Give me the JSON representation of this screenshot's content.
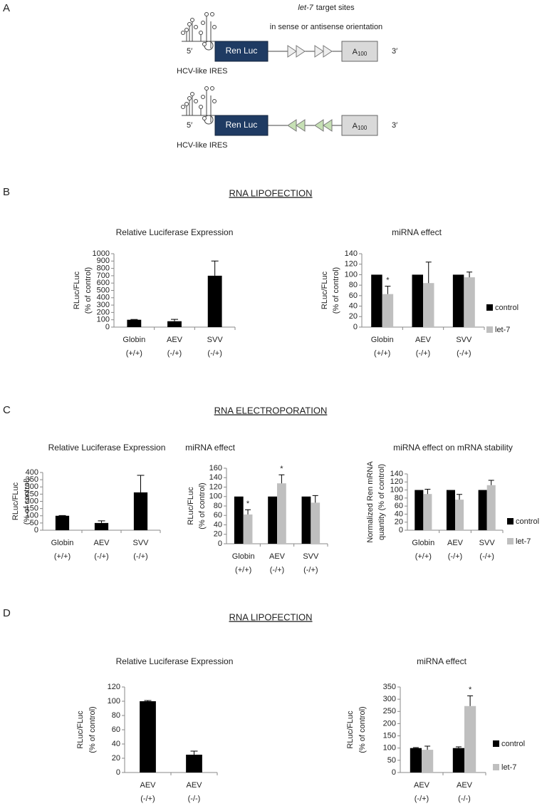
{
  "panels": [
    {
      "label": "A"
    },
    {
      "label": "B",
      "title": "RNA LIPOFECTION"
    },
    {
      "label": "C",
      "title": "RNA ELECTROPORATION"
    },
    {
      "label": "D",
      "title": "RNA LIPOFECTION"
    }
  ],
  "diagram": {
    "note": {
      "italic": "let-7",
      "rest": "target sites",
      "line2": "in sense or antisense orientation"
    },
    "constructs": [
      {
        "five": "5′",
        "reporter": "Ren Luc",
        "tail": "A",
        "tail_sub": "100",
        "three": "3′",
        "ires": "HCV-like IRES"
      },
      {
        "five": "5′",
        "reporter": "Ren Luc",
        "tail": "A",
        "tail_sub": "100",
        "three": "3′",
        "ires": "HCV-like IRES"
      }
    ]
  },
  "chart_data": [
    {
      "type": "bar",
      "title": "Relative Luciferase Expression",
      "y_label": [
        "RLuc/FLuc",
        "(% of control)"
      ],
      "categories": [
        [
          "Globin",
          "(+/+)"
        ],
        [
          "AEV",
          "(-/+)"
        ],
        [
          "SVV",
          "(-/+)"
        ]
      ],
      "values": [
        100,
        80,
        700
      ],
      "errors": [
        4,
        25,
        200
      ],
      "color": "#000000",
      "ylim": [
        0,
        1000
      ],
      "yticks": [
        0,
        100,
        200,
        300,
        400,
        500,
        600,
        700,
        800,
        900,
        1000
      ]
    },
    {
      "type": "grouped_bar",
      "title": "miRNA effect",
      "y_label": [
        "RLuc/FLuc",
        "(% of control)"
      ],
      "categories": [
        [
          "Globin",
          "(+/+)"
        ],
        [
          "AEV",
          "(-/+)"
        ],
        [
          "SVV",
          "(-/+)"
        ]
      ],
      "series": [
        {
          "name": "control",
          "color": "#000000",
          "values": [
            100,
            100,
            100
          ]
        },
        {
          "name": "let-7",
          "color": "#bfbfbf",
          "values": [
            63,
            84,
            95
          ],
          "errors": [
            15,
            40,
            10
          ],
          "annotations": [
            "*",
            null,
            null
          ]
        }
      ],
      "ylim": [
        0,
        140
      ],
      "yticks": [
        0,
        20,
        40,
        60,
        80,
        100,
        120,
        140
      ],
      "legend": "right"
    },
    {
      "type": "bar",
      "title": "Relative Luciferase Expression",
      "y_label": [
        "RLuc/FLuc",
        "(% of control)"
      ],
      "categories": [
        [
          "Globin",
          "(+/+)"
        ],
        [
          "AEV",
          "(-/+)"
        ],
        [
          "SVV",
          "(-/+)"
        ]
      ],
      "values": [
        100,
        50,
        262
      ],
      "errors": [
        2,
        15,
        118
      ],
      "color": "#000000",
      "ylim": [
        0,
        400
      ],
      "yticks": [
        0,
        50,
        100,
        150,
        200,
        250,
        300,
        350,
        400
      ]
    },
    {
      "type": "grouped_bar",
      "title": "miRNA effect",
      "y_label": [
        "RLuc/FLuc",
        "(% of control)"
      ],
      "categories": [
        [
          "Globin",
          "(+/+)"
        ],
        [
          "AEV",
          "(-/+)"
        ],
        [
          "SVV",
          "(-/+)"
        ]
      ],
      "series": [
        {
          "name": "control",
          "color": "#000000",
          "values": [
            100,
            100,
            100
          ]
        },
        {
          "name": "let-7",
          "color": "#bfbfbf",
          "values": [
            62,
            128,
            87
          ],
          "errors": [
            10,
            18,
            15
          ],
          "annotations": [
            "*",
            "*",
            null
          ]
        }
      ],
      "ylim": [
        0,
        160
      ],
      "yticks": [
        0,
        20,
        40,
        60,
        80,
        100,
        120,
        140,
        160
      ]
    },
    {
      "type": "grouped_bar",
      "title": "miRNA effect on mRNA stability",
      "y_label": [
        "Normalized Ren mRNA",
        "quantity (% of control)"
      ],
      "categories": [
        [
          "Globin",
          "(+/+)"
        ],
        [
          "AEV",
          "(-/+)"
        ],
        [
          "SVV",
          "(-/+)"
        ]
      ],
      "series": [
        {
          "name": "control",
          "color": "#000000",
          "values": [
            100,
            100,
            100
          ]
        },
        {
          "name": "let-7",
          "color": "#bfbfbf",
          "values": [
            90,
            76,
            112
          ],
          "errors": [
            12,
            13,
            12
          ]
        }
      ],
      "ylim": [
        0,
        140
      ],
      "yticks": [
        0,
        20,
        40,
        60,
        80,
        100,
        120,
        140
      ],
      "legend": "right"
    },
    {
      "type": "bar",
      "title": "Relative Luciferase Expression",
      "y_label": [
        "RLuc/FLuc",
        "(% of control)"
      ],
      "categories": [
        [
          "AEV",
          "(-/+)"
        ],
        [
          "AEV",
          "(-/-)"
        ]
      ],
      "values": [
        100,
        25
      ],
      "errors": [
        1,
        5
      ],
      "color": "#000000",
      "ylim": [
        0,
        120
      ],
      "yticks": [
        0,
        20,
        40,
        60,
        80,
        100,
        120
      ]
    },
    {
      "type": "grouped_bar",
      "title": "miRNA effect",
      "y_label": [
        "RLuc/FLuc",
        "(% of control)"
      ],
      "categories": [
        [
          "AEV",
          "(-/+)"
        ],
        [
          "AEV",
          "(-/-)"
        ]
      ],
      "series": [
        {
          "name": "control",
          "color": "#000000",
          "values": [
            100,
            100
          ],
          "errors": [
            2,
            5
          ]
        },
        {
          "name": "let-7",
          "color": "#bfbfbf",
          "values": [
            93,
            272
          ],
          "errors": [
            15,
            42
          ],
          "annotations": [
            null,
            "*"
          ]
        }
      ],
      "ylim": [
        0,
        350
      ],
      "yticks": [
        0,
        50,
        100,
        150,
        200,
        250,
        300,
        350
      ],
      "legend": "right"
    }
  ]
}
